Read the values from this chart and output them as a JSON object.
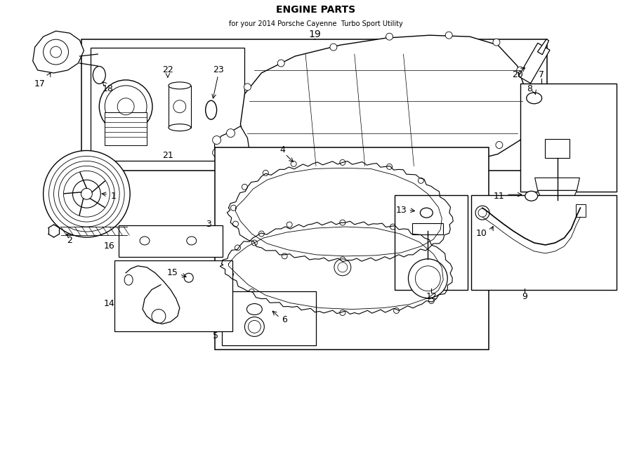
{
  "bg": "#ffffff",
  "lc": "#000000",
  "fig_w": 9.0,
  "fig_h": 6.61,
  "dpi": 100,
  "title": "ENGINE PARTS",
  "subtitle": "for your 2014 Porsche Cayenne  Turbo Sport Utility"
}
